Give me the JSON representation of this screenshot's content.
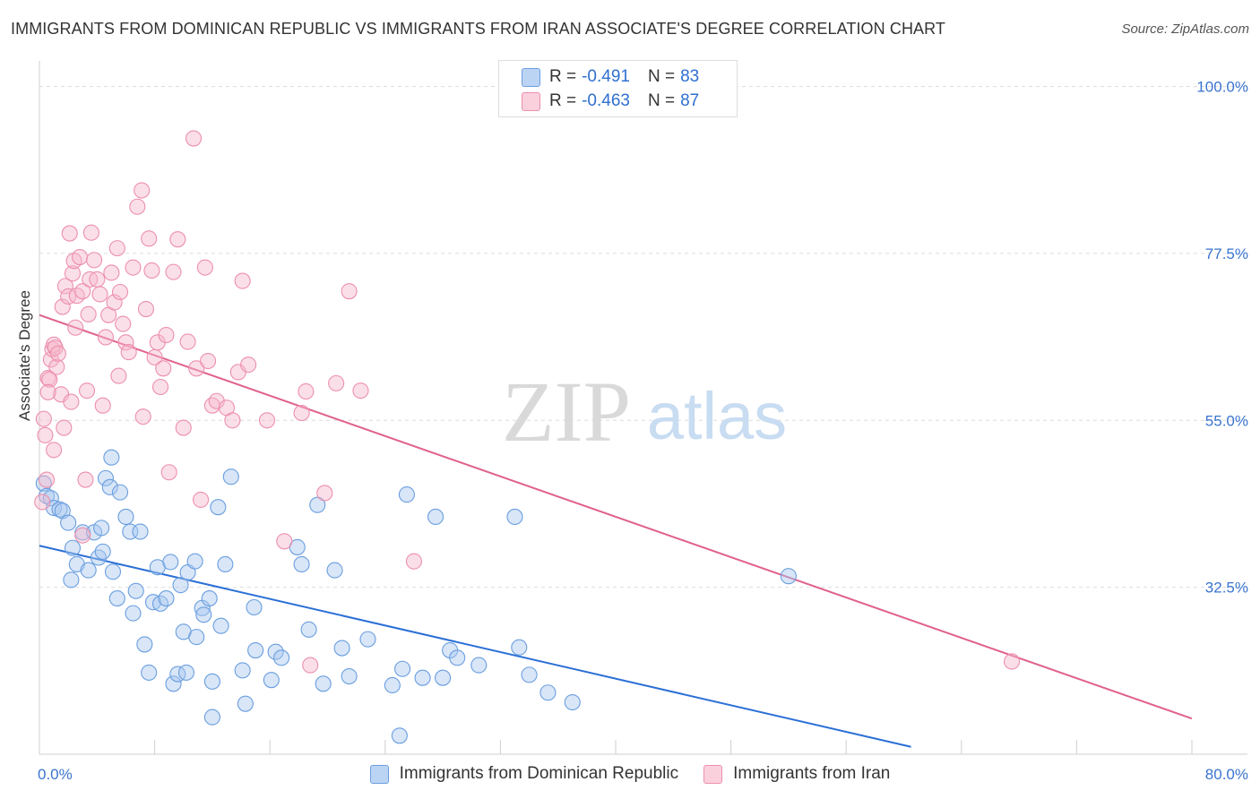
{
  "title": "IMMIGRANTS FROM DOMINICAN REPUBLIC VS IMMIGRANTS FROM IRAN ASSOCIATE'S DEGREE CORRELATION CHART",
  "source": "Source: ZipAtlas.com",
  "watermark": {
    "zip": "ZIP",
    "atlas": "atlas"
  },
  "legend": {
    "r_label": "R =",
    "n_label": "N =",
    "rows": [
      {
        "r": "-0.491",
        "n": "83"
      },
      {
        "r": "-0.463",
        "n": "87"
      }
    ]
  },
  "colors": {
    "blue_fill": "#a9c8f0",
    "blue_stroke": "#6a9edf",
    "blue_line": "#2a6fd6",
    "pink_fill": "#f6b8cb",
    "pink_stroke": "#ec8fad",
    "pink_line": "#e0608e",
    "tick_label": "#3a74cf",
    "grid": "#dcdcdc"
  },
  "chart_data": {
    "type": "scatter",
    "title": "IMMIGRANTS FROM DOMINICAN REPUBLIC VS IMMIGRANTS FROM IRAN ASSOCIATE'S DEGREE CORRELATION CHART",
    "xlabel": "",
    "ylabel": "Associate's Degree",
    "xlim": [
      0,
      80
    ],
    "ylim": [
      10,
      102
    ],
    "x_tick_labels": [
      "0.0%",
      "80.0%"
    ],
    "y_ticks": [
      32.5,
      55.0,
      77.5,
      100.0
    ],
    "y_tick_labels": [
      "32.5%",
      "55.0%",
      "77.5%",
      "100.0%"
    ],
    "grid": true,
    "legend_position": "top-center",
    "series": [
      {
        "name": "Immigrants from Dominican Republic",
        "color": "#6a9edf",
        "r": -0.491,
        "n": 83,
        "trend": {
          "x": [
            0,
            60.5
          ],
          "y": [
            38.1,
            11.0
          ]
        },
        "points": [
          [
            0.3,
            46.5
          ],
          [
            0.5,
            44.8
          ],
          [
            0.8,
            44.5
          ],
          [
            1.0,
            43.2
          ],
          [
            1.4,
            43.0
          ],
          [
            1.6,
            42.8
          ],
          [
            2.0,
            41.2
          ],
          [
            2.3,
            37.8
          ],
          [
            2.6,
            35.6
          ],
          [
            3.0,
            39.9
          ],
          [
            3.4,
            34.8
          ],
          [
            3.8,
            39.9
          ],
          [
            4.1,
            36.5
          ],
          [
            4.3,
            40.5
          ],
          [
            4.4,
            37.3
          ],
          [
            4.6,
            47.2
          ],
          [
            4.9,
            46.0
          ],
          [
            5.1,
            34.6
          ],
          [
            5.4,
            31.0
          ],
          [
            5.6,
            45.3
          ],
          [
            6.0,
            42.0
          ],
          [
            6.3,
            40.0
          ],
          [
            6.5,
            29.0
          ],
          [
            6.7,
            32.0
          ],
          [
            7.0,
            40.0
          ],
          [
            7.3,
            24.8
          ],
          [
            7.6,
            21.0
          ],
          [
            7.9,
            30.5
          ],
          [
            8.2,
            35.2
          ],
          [
            8.4,
            30.3
          ],
          [
            8.8,
            31.0
          ],
          [
            9.1,
            35.9
          ],
          [
            9.3,
            19.5
          ],
          [
            9.6,
            20.8
          ],
          [
            9.8,
            32.8
          ],
          [
            10.0,
            26.5
          ],
          [
            10.2,
            21.0
          ],
          [
            10.3,
            34.5
          ],
          [
            10.8,
            36.0
          ],
          [
            10.9,
            25.8
          ],
          [
            11.3,
            29.7
          ],
          [
            11.4,
            28.8
          ],
          [
            11.8,
            31.0
          ],
          [
            12.0,
            19.8
          ],
          [
            12.4,
            43.3
          ],
          [
            12.6,
            27.3
          ],
          [
            12.9,
            35.6
          ],
          [
            13.3,
            47.4
          ],
          [
            14.1,
            21.3
          ],
          [
            14.3,
            16.8
          ],
          [
            14.9,
            29.8
          ],
          [
            15.0,
            24.0
          ],
          [
            16.1,
            20.0
          ],
          [
            16.4,
            23.8
          ],
          [
            16.8,
            23.0
          ],
          [
            17.9,
            37.9
          ],
          [
            18.2,
            35.6
          ],
          [
            18.7,
            26.8
          ],
          [
            19.3,
            43.6
          ],
          [
            19.7,
            19.5
          ],
          [
            20.5,
            34.8
          ],
          [
            21.0,
            24.3
          ],
          [
            21.5,
            20.5
          ],
          [
            22.8,
            25.5
          ],
          [
            24.5,
            19.3
          ],
          [
            25.2,
            21.5
          ],
          [
            25.5,
            45.0
          ],
          [
            26.6,
            20.3
          ],
          [
            27.5,
            42.0
          ],
          [
            28.0,
            20.3
          ],
          [
            28.5,
            24.0
          ],
          [
            29.0,
            23.0
          ],
          [
            30.5,
            22.0
          ],
          [
            33.0,
            42.0
          ],
          [
            33.3,
            24.4
          ],
          [
            34.0,
            20.7
          ],
          [
            35.3,
            18.3
          ],
          [
            37.0,
            17.0
          ],
          [
            52.0,
            34.0
          ],
          [
            5.0,
            50.0
          ],
          [
            2.2,
            33.5
          ],
          [
            12.0,
            15.0
          ],
          [
            25.0,
            12.5
          ]
        ]
      },
      {
        "name": "Immigrants from Iran",
        "color": "#ec8fad",
        "r": -0.463,
        "n": 87,
        "trend": {
          "x": [
            0,
            80
          ],
          "y": [
            69.2,
            14.8
          ]
        },
        "points": [
          [
            0.2,
            44.0
          ],
          [
            0.3,
            55.2
          ],
          [
            0.4,
            53.0
          ],
          [
            0.5,
            47.0
          ],
          [
            0.6,
            60.7
          ],
          [
            0.7,
            60.5
          ],
          [
            0.8,
            63.2
          ],
          [
            0.9,
            64.6
          ],
          [
            1.0,
            65.2
          ],
          [
            1.1,
            64.8
          ],
          [
            1.2,
            62.2
          ],
          [
            1.3,
            64.0
          ],
          [
            1.5,
            58.5
          ],
          [
            1.6,
            70.3
          ],
          [
            1.7,
            54.0
          ],
          [
            1.8,
            73.1
          ],
          [
            2.0,
            71.7
          ],
          [
            2.1,
            80.2
          ],
          [
            2.2,
            57.5
          ],
          [
            2.3,
            74.8
          ],
          [
            2.4,
            76.5
          ],
          [
            2.5,
            67.5
          ],
          [
            2.6,
            71.8
          ],
          [
            2.8,
            77.0
          ],
          [
            3.0,
            72.4
          ],
          [
            3.2,
            47.0
          ],
          [
            3.3,
            59.0
          ],
          [
            3.4,
            69.3
          ],
          [
            3.5,
            74.0
          ],
          [
            3.6,
            80.3
          ],
          [
            3.8,
            76.6
          ],
          [
            4.0,
            74.0
          ],
          [
            4.2,
            72.0
          ],
          [
            4.4,
            57.0
          ],
          [
            4.6,
            66.2
          ],
          [
            4.8,
            69.2
          ],
          [
            5.0,
            74.9
          ],
          [
            5.2,
            70.9
          ],
          [
            5.4,
            78.2
          ],
          [
            5.6,
            72.3
          ],
          [
            5.8,
            68.0
          ],
          [
            6.0,
            65.5
          ],
          [
            6.2,
            64.2
          ],
          [
            6.5,
            75.6
          ],
          [
            6.8,
            83.8
          ],
          [
            7.1,
            86.0
          ],
          [
            7.4,
            70.0
          ],
          [
            7.6,
            79.5
          ],
          [
            7.8,
            75.2
          ],
          [
            8.0,
            63.5
          ],
          [
            8.2,
            65.5
          ],
          [
            8.4,
            59.5
          ],
          [
            8.6,
            62.0
          ],
          [
            8.8,
            66.5
          ],
          [
            9.0,
            48.0
          ],
          [
            9.3,
            75.0
          ],
          [
            9.6,
            79.4
          ],
          [
            10.0,
            54.0
          ],
          [
            10.3,
            65.6
          ],
          [
            10.7,
            93.0
          ],
          [
            10.9,
            62.0
          ],
          [
            11.2,
            44.3
          ],
          [
            11.5,
            75.6
          ],
          [
            11.7,
            63.0
          ],
          [
            12.0,
            57.0
          ],
          [
            12.3,
            57.6
          ],
          [
            13.0,
            56.7
          ],
          [
            13.4,
            55.0
          ],
          [
            13.8,
            61.5
          ],
          [
            14.1,
            73.8
          ],
          [
            14.5,
            62.5
          ],
          [
            15.8,
            55.0
          ],
          [
            17.0,
            38.7
          ],
          [
            18.2,
            56.0
          ],
          [
            18.8,
            22.0
          ],
          [
            18.5,
            58.9
          ],
          [
            19.8,
            45.2
          ],
          [
            20.6,
            60.0
          ],
          [
            21.5,
            72.4
          ],
          [
            22.3,
            59.0
          ],
          [
            26.0,
            36.0
          ],
          [
            67.5,
            22.5
          ],
          [
            3.0,
            39.5
          ],
          [
            5.5,
            61.0
          ],
          [
            7.2,
            55.5
          ],
          [
            1.0,
            51.0
          ],
          [
            0.6,
            58.8
          ]
        ]
      }
    ]
  },
  "bottom_legend": [
    "Immigrants from Dominican Republic",
    "Immigrants from Iran"
  ]
}
